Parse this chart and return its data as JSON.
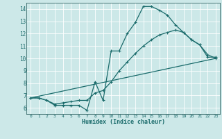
{
  "xlabel": "Humidex (Indice chaleur)",
  "bg_color": "#cce8e8",
  "line_color": "#1a6b6b",
  "grid_color": "#ffffff",
  "xlim": [
    -0.5,
    23.5
  ],
  "ylim": [
    5.5,
    14.5
  ],
  "xticks": [
    0,
    1,
    2,
    3,
    4,
    5,
    6,
    7,
    8,
    9,
    10,
    11,
    12,
    13,
    14,
    15,
    16,
    17,
    18,
    19,
    20,
    21,
    22,
    23
  ],
  "yticks": [
    6,
    7,
    8,
    9,
    10,
    11,
    12,
    13,
    14
  ],
  "line1_x": [
    0,
    1,
    2,
    3,
    4,
    5,
    6,
    7,
    8,
    9,
    10,
    11,
    12,
    13,
    14,
    15,
    16,
    17,
    18,
    19,
    20,
    21,
    22,
    23
  ],
  "line1_y": [
    6.8,
    6.8,
    6.6,
    6.2,
    6.2,
    6.2,
    6.2,
    5.8,
    8.1,
    6.6,
    10.6,
    10.6,
    12.0,
    12.9,
    14.2,
    14.2,
    13.9,
    13.5,
    12.7,
    12.1,
    11.5,
    11.1,
    10.1,
    10.1
  ],
  "line2_x": [
    0,
    1,
    2,
    3,
    4,
    5,
    6,
    7,
    8,
    9,
    10,
    11,
    12,
    13,
    14,
    15,
    16,
    17,
    18,
    19,
    20,
    21,
    22,
    23
  ],
  "line2_y": [
    6.8,
    6.8,
    6.6,
    6.3,
    6.4,
    6.5,
    6.6,
    6.6,
    7.2,
    7.4,
    8.1,
    9.0,
    9.7,
    10.4,
    11.0,
    11.5,
    11.9,
    12.1,
    12.3,
    12.1,
    11.5,
    11.1,
    10.3,
    10.0
  ],
  "line3_x": [
    0,
    23
  ],
  "line3_y": [
    6.8,
    10.0
  ]
}
